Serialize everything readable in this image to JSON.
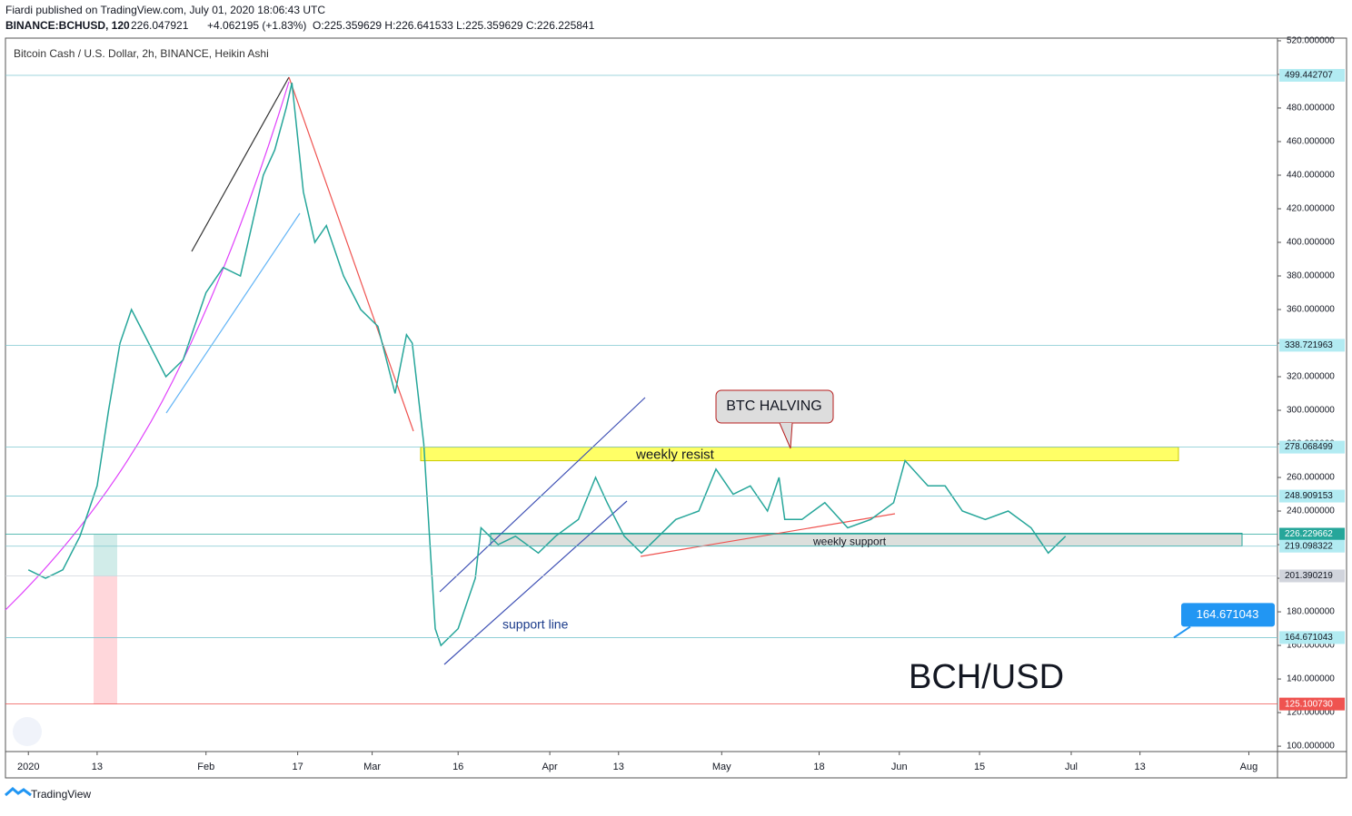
{
  "header": {
    "publisher": "Fiardi published on TradingView.com, July 01, 2020 18:06:43 UTC",
    "symbol": "BINANCE:BCHUSD, 120",
    "last": "226.047921",
    "change": "+4.062195 (+1.83%)",
    "ohlc": "O:225.359629 H:226.641533 L:225.359629 C:226.225841"
  },
  "footer": "TradingView",
  "chart_data": {
    "type": "line",
    "title": "Bitcoin Cash / U.S. Dollar, 2h, BINANCE, Heikin Ashi",
    "x": [
      "2020-01-01",
      "2020-01-04",
      "2020-01-07",
      "2020-01-10",
      "2020-01-13",
      "2020-01-15",
      "2020-01-17",
      "2020-01-19",
      "2020-01-22",
      "2020-01-25",
      "2020-01-28",
      "2020-02-01",
      "2020-02-04",
      "2020-02-07",
      "2020-02-09",
      "2020-02-11",
      "2020-02-13",
      "2020-02-15",
      "2020-02-16",
      "2020-02-18",
      "2020-02-20",
      "2020-02-22",
      "2020-02-25",
      "2020-02-28",
      "2020-03-02",
      "2020-03-05",
      "2020-03-07",
      "2020-03-08",
      "2020-03-10",
      "2020-03-12",
      "2020-03-13",
      "2020-03-16",
      "2020-03-19",
      "2020-03-20",
      "2020-03-23",
      "2020-03-26",
      "2020-03-30",
      "2020-04-02",
      "2020-04-06",
      "2020-04-09",
      "2020-04-11",
      "2020-04-14",
      "2020-04-17",
      "2020-04-20",
      "2020-04-23",
      "2020-04-27",
      "2020-04-30",
      "2020-05-03",
      "2020-05-06",
      "2020-05-09",
      "2020-05-11",
      "2020-05-12",
      "2020-05-15",
      "2020-05-19",
      "2020-05-23",
      "2020-05-27",
      "2020-05-31",
      "2020-06-02",
      "2020-06-06",
      "2020-06-09",
      "2020-06-12",
      "2020-06-16",
      "2020-06-20",
      "2020-06-24",
      "2020-06-27",
      "2020-06-30"
    ],
    "series": [
      {
        "name": "BCHUSD",
        "color": "#26a69a",
        "values": [
          205,
          200,
          205,
          225,
          255,
          300,
          340,
          360,
          340,
          320,
          330,
          370,
          385,
          380,
          410,
          440,
          455,
          480,
          495,
          430,
          400,
          410,
          380,
          360,
          350,
          310,
          345,
          340,
          280,
          170,
          160,
          170,
          200,
          230,
          220,
          225,
          215,
          225,
          235,
          260,
          245,
          225,
          215,
          225,
          235,
          240,
          265,
          250,
          255,
          240,
          260,
          235,
          235,
          245,
          230,
          235,
          245,
          270,
          255,
          255,
          240,
          235,
          240,
          230,
          215,
          225
        ]
      }
    ],
    "xlim": [
      "2019-12-28",
      "2020-08-06"
    ],
    "xticks": [
      {
        "value": "2020-01-01",
        "label": "2020"
      },
      {
        "value": "2020-01-13",
        "label": "13"
      },
      {
        "value": "2020-02-01",
        "label": "Feb"
      },
      {
        "value": "2020-02-17",
        "label": "17"
      },
      {
        "value": "2020-03-01",
        "label": "Mar"
      },
      {
        "value": "2020-03-16",
        "label": "16"
      },
      {
        "value": "2020-04-01",
        "label": "Apr"
      },
      {
        "value": "2020-04-13",
        "label": "13"
      },
      {
        "value": "2020-05-01",
        "label": "May"
      },
      {
        "value": "2020-05-18",
        "label": "18"
      },
      {
        "value": "2020-06-01",
        "label": "Jun"
      },
      {
        "value": "2020-06-15",
        "label": "15"
      },
      {
        "value": "2020-07-01",
        "label": "Jul"
      },
      {
        "value": "2020-07-13",
        "label": "13"
      },
      {
        "value": "2020-08-01",
        "label": "Aug"
      }
    ],
    "ylim": [
      96.8,
      521.6
    ],
    "yticks": [
      {
        "value": 100,
        "label": "100.000000"
      },
      {
        "value": 120,
        "label": "120.000000"
      },
      {
        "value": 140,
        "label": "140.000000"
      },
      {
        "value": 160,
        "label": "160.000000"
      },
      {
        "value": 180,
        "label": "180.000000"
      },
      {
        "value": 200,
        "label": "200.000000"
      },
      {
        "value": 220,
        "label": "220.000000"
      },
      {
        "value": 240,
        "label": "240.000000"
      },
      {
        "value": 260,
        "label": "260.000000"
      },
      {
        "value": 280,
        "label": "280.000000"
      },
      {
        "value": 300,
        "label": "300.000000"
      },
      {
        "value": 320,
        "label": "320.000000"
      },
      {
        "value": 340,
        "label": "340.000000"
      },
      {
        "value": 360,
        "label": "360.000000"
      },
      {
        "value": 380,
        "label": "380.000000"
      },
      {
        "value": 400,
        "label": "400.000000"
      },
      {
        "value": 420,
        "label": "420.000000"
      },
      {
        "value": 440,
        "label": "440.000000"
      },
      {
        "value": 460,
        "label": "460.000000"
      },
      {
        "value": 480,
        "label": "480.000000"
      },
      {
        "value": 500,
        "label": "500.000000"
      },
      {
        "value": 520,
        "label": "520.000000"
      }
    ],
    "levels": [
      {
        "value": 499.442707,
        "color": "#b2ebf2",
        "text_color": "#131722"
      },
      {
        "value": 338.721963,
        "color": "#b2ebf2",
        "text_color": "#131722"
      },
      {
        "value": 278.068499,
        "color": "#b2ebf2",
        "text_color": "#131722"
      },
      {
        "value": 248.909153,
        "color": "#b2ebf2",
        "text_color": "#131722"
      },
      {
        "value": 226.229662,
        "color": "#26a69a",
        "text_color": "#ffffff"
      },
      {
        "value": 219.098322,
        "color": "#b2ebf2",
        "text_color": "#131722"
      },
      {
        "value": 201.390219,
        "color": "#d1d4dc",
        "text_color": "#131722"
      },
      {
        "value": 164.671043,
        "color": "#b2ebf2",
        "text_color": "#131722"
      },
      {
        "value": {
          "value": 125.10073,
          "label": "125.100730"
        },
        "color": "#ef5350",
        "text_color": "#ffffff"
      }
    ],
    "callout": 164.671043,
    "annotations": {
      "resist": "weekly resist",
      "support": "weekly support",
      "halving": "BTC HALVING",
      "support_line": "support line",
      "pair": "BCH/USD"
    }
  }
}
